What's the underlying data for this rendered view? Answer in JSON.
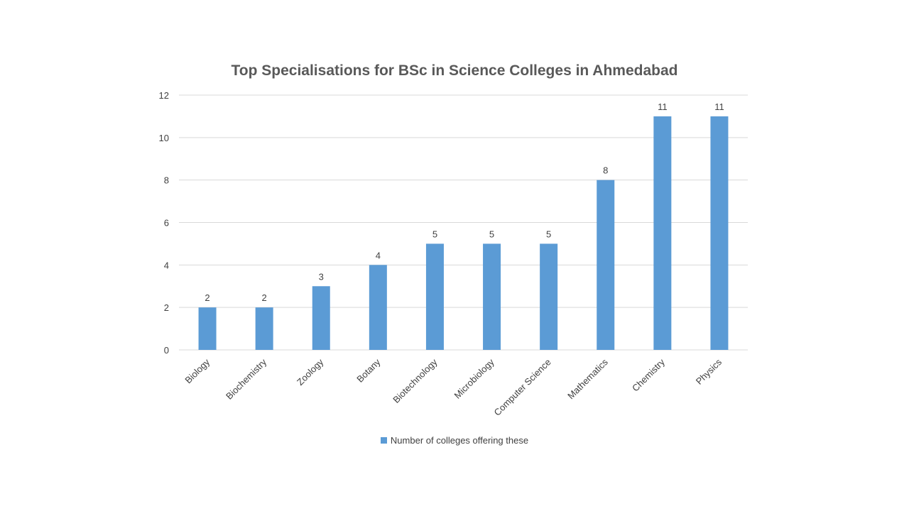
{
  "chart_data": {
    "type": "bar",
    "title": "Top Specialisations for BSc in Science Colleges in Ahmedabad",
    "xlabel": "",
    "ylabel": "",
    "categories": [
      "Biology",
      "Biochemistry",
      "Zoology",
      "Botany",
      "Biotechnology",
      "Microbiology",
      "Computer Science",
      "Mathematics",
      "Chemistry",
      "Physics"
    ],
    "series": [
      {
        "name": "Number of colleges offering these",
        "values": [
          2,
          2,
          3,
          4,
          5,
          5,
          5,
          8,
          11,
          11
        ],
        "color": "#5B9BD5"
      }
    ],
    "ylim": [
      0,
      12
    ],
    "yticks": [
      0,
      2,
      4,
      6,
      8,
      10,
      12
    ],
    "grid": true,
    "data_labels": true,
    "legend_position": "bottom",
    "x_tick_rotation": "diagonal"
  }
}
